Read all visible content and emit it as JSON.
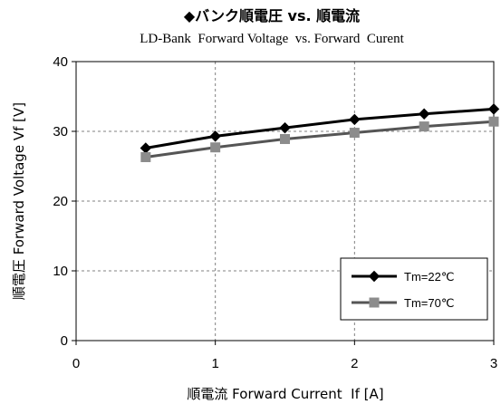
{
  "chart_data": {
    "type": "line",
    "title": "◆バンク順電圧 vs. 順電流",
    "subtitle": "LD-Bank  Forward Voltage  vs. Forward  Curent",
    "xlabel": "順電流 Forward Current  If [A]",
    "ylabel": "順電圧 Forward Voltage Vf [V]",
    "xlim": [
      0,
      3
    ],
    "ylim": [
      0,
      40
    ],
    "xticks": [
      "0",
      "1",
      "2",
      "3"
    ],
    "yticks": [
      "0",
      "10",
      "20",
      "30",
      "40"
    ],
    "grid": true,
    "legend_position": "bottom-right",
    "series": [
      {
        "name": "Tm=22℃",
        "color": "#000000",
        "marker": "diamond",
        "x": [
          0.5,
          1.0,
          1.5,
          2.0,
          2.5,
          3.0
        ],
        "y": [
          27.6,
          29.3,
          30.5,
          31.7,
          32.5,
          33.2
        ]
      },
      {
        "name": "Tm=70℃",
        "color": "#555555",
        "marker": "square",
        "x": [
          0.5,
          1.0,
          1.5,
          2.0,
          2.5,
          3.0
        ],
        "y": [
          26.3,
          27.7,
          28.9,
          29.8,
          30.7,
          31.4
        ]
      }
    ]
  }
}
